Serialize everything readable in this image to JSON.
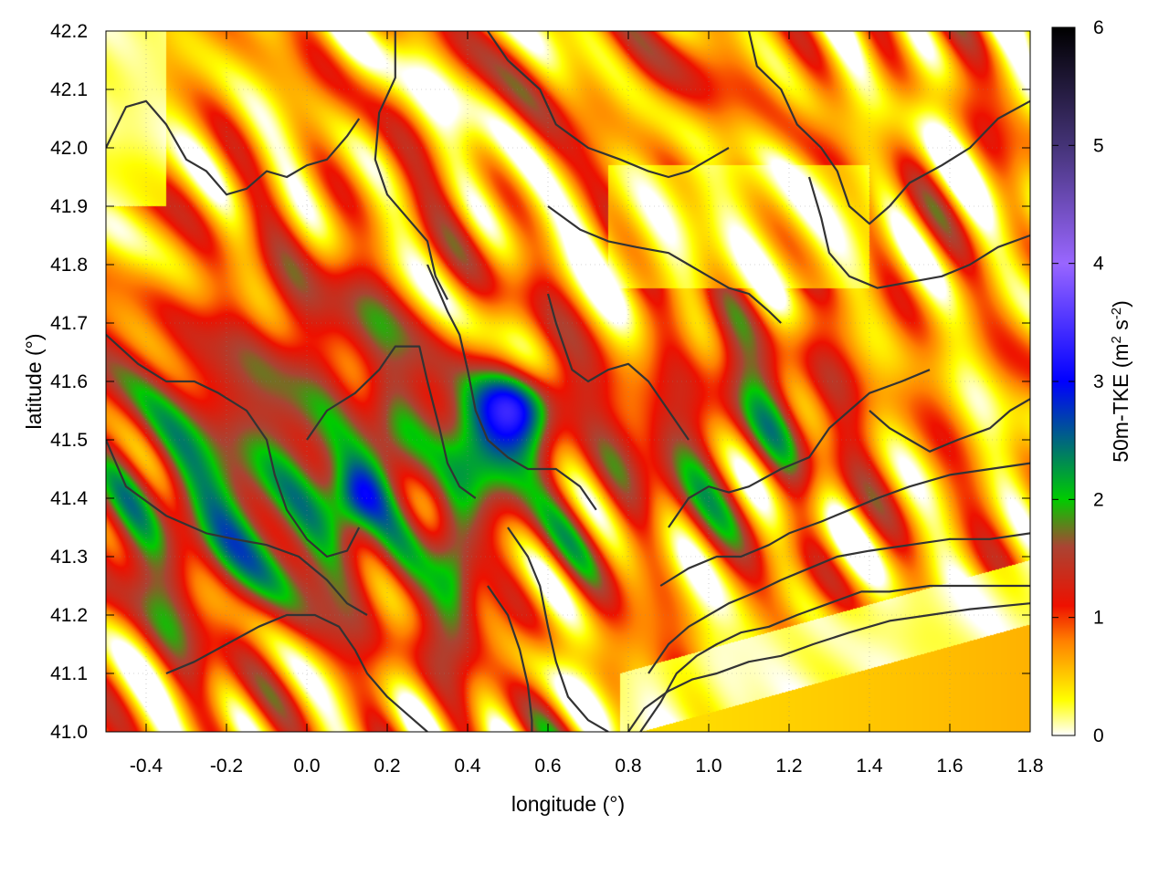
{
  "chart_data": {
    "type": "heatmap",
    "xlabel": "longitude (°)",
    "ylabel": "latitude (°)",
    "colorbar_label_main": "50m-TKE (m",
    "colorbar_label_sup1": "2",
    "colorbar_label_mid": " s",
    "colorbar_label_sup2": "-2",
    "colorbar_label_end": ")",
    "xlim": [
      -0.5,
      1.8
    ],
    "ylim": [
      41.0,
      42.2
    ],
    "clim": [
      0,
      6
    ],
    "x_ticks": [
      -0.4,
      -0.2,
      0.0,
      0.2,
      0.4,
      0.6,
      0.8,
      1.0,
      1.2,
      1.4,
      1.6,
      1.8
    ],
    "x_tick_labels": [
      "-0.4",
      "-0.2",
      "0.0",
      "0.2",
      "0.4",
      "0.6",
      "0.8",
      "1.0",
      "1.2",
      "1.4",
      "1.6",
      "1.8"
    ],
    "y_ticks": [
      41.0,
      41.1,
      41.2,
      41.3,
      41.4,
      41.5,
      41.6,
      41.7,
      41.8,
      41.9,
      42.0,
      42.1,
      42.2
    ],
    "y_tick_labels": [
      "41.0",
      "41.1",
      "41.2",
      "41.3",
      "41.4",
      "41.5",
      "41.6",
      "41.7",
      "41.8",
      "41.9",
      "42.0",
      "42.1",
      "42.2"
    ],
    "cbar_ticks": [
      0,
      1,
      2,
      3,
      4,
      5,
      6
    ],
    "cbar_tick_labels": [
      "0",
      "1",
      "2",
      "3",
      "4",
      "5",
      "6"
    ],
    "colormap": [
      {
        "v": 0.0,
        "color": "#ffffff"
      },
      {
        "v": 0.3,
        "color": "#ffff00"
      },
      {
        "v": 0.8,
        "color": "#ff8000"
      },
      {
        "v": 1.1,
        "color": "#ee1100"
      },
      {
        "v": 1.6,
        "color": "#aa4433"
      },
      {
        "v": 2.0,
        "color": "#00cc00"
      },
      {
        "v": 3.0,
        "color": "#0000ff"
      },
      {
        "v": 4.0,
        "color": "#9966ff"
      },
      {
        "v": 5.0,
        "color": "#443377"
      },
      {
        "v": 6.0,
        "color": "#000000"
      }
    ],
    "grid": true,
    "sea_tke": 0.5,
    "hotspots": [
      {
        "x": -0.25,
        "y": 41.45,
        "sx": 0.35,
        "sy": 0.18,
        "a": 1.0
      },
      {
        "x": 0.0,
        "y": 41.32,
        "sx": 0.3,
        "sy": 0.12,
        "a": 0.7
      },
      {
        "x": 0.47,
        "y": 41.51,
        "sx": 0.09,
        "sy": 0.07,
        "a": 1.9
      },
      {
        "x": 0.55,
        "y": 41.57,
        "sx": 0.08,
        "sy": 0.04,
        "a": 1.0
      },
      {
        "x": 0.21,
        "y": 41.5,
        "sx": 0.06,
        "sy": 0.07,
        "a": 0.7
      },
      {
        "x": 0.12,
        "y": 41.4,
        "sx": 0.05,
        "sy": 0.04,
        "a": 0.9
      },
      {
        "x": 0.37,
        "y": 41.3,
        "sx": 0.04,
        "sy": 0.08,
        "a": 1.1
      },
      {
        "x": 0.38,
        "y": 41.15,
        "sx": 0.08,
        "sy": 0.05,
        "a": 0.6
      },
      {
        "x": 1.1,
        "y": 41.55,
        "sx": 0.2,
        "sy": 0.12,
        "a": 0.9
      },
      {
        "x": 0.1,
        "y": 41.7,
        "sx": 0.2,
        "sy": 0.12,
        "a": 0.5
      },
      {
        "x": 0.85,
        "y": 42.12,
        "sx": 0.2,
        "sy": 0.06,
        "a": 0.4
      },
      {
        "x": 0.75,
        "y": 41.4,
        "sx": 0.15,
        "sy": 0.1,
        "a": 0.5
      }
    ],
    "contours": [
      [
        [
          -0.5,
          42.0
        ],
        [
          -0.45,
          42.07
        ],
        [
          -0.4,
          42.08
        ],
        [
          -0.35,
          42.04
        ],
        [
          -0.3,
          41.98
        ],
        [
          -0.25,
          41.96
        ],
        [
          -0.2,
          41.92
        ],
        [
          -0.15,
          41.93
        ],
        [
          -0.1,
          41.96
        ],
        [
          -0.05,
          41.95
        ],
        [
          0.0,
          41.97
        ],
        [
          0.05,
          41.98
        ],
        [
          0.1,
          42.02
        ],
        [
          0.13,
          42.05
        ]
      ],
      [
        [
          -0.5,
          41.68
        ],
        [
          -0.42,
          41.63
        ],
        [
          -0.35,
          41.6
        ],
        [
          -0.28,
          41.6
        ],
        [
          -0.22,
          41.58
        ],
        [
          -0.15,
          41.55
        ],
        [
          -0.1,
          41.5
        ],
        [
          -0.08,
          41.44
        ],
        [
          -0.05,
          41.38
        ],
        [
          0.0,
          41.33
        ],
        [
          0.05,
          41.3
        ],
        [
          0.1,
          41.31
        ],
        [
          0.13,
          41.35
        ]
      ],
      [
        [
          -0.5,
          41.5
        ],
        [
          -0.45,
          41.42
        ],
        [
          -0.35,
          41.37
        ],
        [
          -0.25,
          41.34
        ],
        [
          -0.18,
          41.33
        ],
        [
          -0.1,
          41.32
        ],
        [
          -0.02,
          41.3
        ],
        [
          0.05,
          41.26
        ],
        [
          0.1,
          41.22
        ],
        [
          0.15,
          41.2
        ]
      ],
      [
        [
          0.0,
          41.5
        ],
        [
          0.05,
          41.55
        ],
        [
          0.12,
          41.58
        ],
        [
          0.18,
          41.62
        ],
        [
          0.22,
          41.66
        ],
        [
          0.28,
          41.66
        ],
        [
          0.3,
          41.6
        ],
        [
          0.33,
          41.52
        ],
        [
          0.35,
          41.46
        ],
        [
          0.38,
          41.42
        ],
        [
          0.42,
          41.4
        ]
      ],
      [
        [
          0.3,
          41.8
        ],
        [
          0.35,
          41.72
        ],
        [
          0.38,
          41.68
        ],
        [
          0.4,
          41.62
        ],
        [
          0.42,
          41.55
        ],
        [
          0.45,
          41.5
        ],
        [
          0.5,
          41.47
        ],
        [
          0.55,
          41.45
        ],
        [
          0.62,
          41.45
        ],
        [
          0.68,
          41.42
        ],
        [
          0.72,
          41.38
        ]
      ],
      [
        [
          0.45,
          42.2
        ],
        [
          0.5,
          42.15
        ],
        [
          0.58,
          42.1
        ],
        [
          0.62,
          42.04
        ],
        [
          0.7,
          42.0
        ],
        [
          0.78,
          41.98
        ],
        [
          0.85,
          41.96
        ],
        [
          0.9,
          41.95
        ],
        [
          0.95,
          41.96
        ],
        [
          1.0,
          41.98
        ],
        [
          1.05,
          42.0
        ]
      ],
      [
        [
          0.6,
          41.9
        ],
        [
          0.68,
          41.86
        ],
        [
          0.75,
          41.84
        ],
        [
          0.82,
          41.83
        ],
        [
          0.9,
          41.82
        ],
        [
          0.95,
          41.8
        ],
        [
          1.0,
          41.78
        ],
        [
          1.05,
          41.76
        ],
        [
          1.1,
          41.75
        ],
        [
          1.15,
          41.72
        ],
        [
          1.18,
          41.7
        ]
      ],
      [
        [
          0.9,
          41.35
        ],
        [
          0.95,
          41.4
        ],
        [
          1.0,
          41.42
        ],
        [
          1.05,
          41.41
        ],
        [
          1.1,
          41.42
        ],
        [
          1.18,
          41.45
        ],
        [
          1.25,
          41.47
        ],
        [
          1.3,
          41.52
        ],
        [
          1.35,
          41.55
        ],
        [
          1.4,
          41.58
        ],
        [
          1.48,
          41.6
        ],
        [
          1.55,
          41.62
        ]
      ],
      [
        [
          0.88,
          41.25
        ],
        [
          0.95,
          41.28
        ],
        [
          1.02,
          41.3
        ],
        [
          1.08,
          41.3
        ],
        [
          1.15,
          41.32
        ],
        [
          1.2,
          41.34
        ],
        [
          1.28,
          41.36
        ],
        [
          1.35,
          41.38
        ],
        [
          1.42,
          41.4
        ],
        [
          1.5,
          41.42
        ],
        [
          1.6,
          41.44
        ],
        [
          1.7,
          41.45
        ],
        [
          1.8,
          41.46
        ]
      ],
      [
        [
          0.85,
          41.1
        ],
        [
          0.9,
          41.15
        ],
        [
          0.95,
          41.18
        ],
        [
          1.0,
          41.2
        ],
        [
          1.05,
          41.22
        ],
        [
          1.12,
          41.24
        ],
        [
          1.18,
          41.26
        ],
        [
          1.25,
          41.28
        ],
        [
          1.32,
          41.3
        ],
        [
          1.4,
          41.31
        ],
        [
          1.5,
          41.32
        ],
        [
          1.6,
          41.33
        ],
        [
          1.7,
          41.33
        ],
        [
          1.8,
          41.34
        ]
      ],
      [
        [
          0.83,
          41.0
        ],
        [
          0.88,
          41.05
        ],
        [
          0.92,
          41.1
        ],
        [
          0.97,
          41.13
        ],
        [
          1.02,
          41.15
        ],
        [
          1.08,
          41.17
        ],
        [
          1.15,
          41.18
        ],
        [
          1.22,
          41.2
        ],
        [
          1.3,
          41.22
        ],
        [
          1.38,
          41.24
        ],
        [
          1.45,
          41.24
        ],
        [
          1.55,
          41.25
        ],
        [
          1.65,
          41.25
        ],
        [
          1.75,
          41.25
        ],
        [
          1.8,
          41.25
        ]
      ],
      [
        [
          0.8,
          41.0
        ],
        [
          0.84,
          41.04
        ],
        [
          0.9,
          41.07
        ],
        [
          0.96,
          41.09
        ],
        [
          1.02,
          41.1
        ],
        [
          1.1,
          41.12
        ],
        [
          1.18,
          41.13
        ],
        [
          1.26,
          41.15
        ],
        [
          1.35,
          41.17
        ],
        [
          1.45,
          41.19
        ],
        [
          1.55,
          41.2
        ],
        [
          1.65,
          41.21
        ],
        [
          1.8,
          41.22
        ]
      ],
      [
        [
          1.1,
          42.2
        ],
        [
          1.12,
          42.14
        ],
        [
          1.18,
          42.1
        ],
        [
          1.22,
          42.04
        ],
        [
          1.28,
          42.0
        ],
        [
          1.32,
          41.96
        ],
        [
          1.35,
          41.9
        ],
        [
          1.4,
          41.87
        ],
        [
          1.45,
          41.9
        ],
        [
          1.5,
          41.94
        ],
        [
          1.58,
          41.97
        ],
        [
          1.65,
          42.0
        ],
        [
          1.72,
          42.05
        ],
        [
          1.8,
          42.08
        ]
      ],
      [
        [
          1.25,
          41.95
        ],
        [
          1.28,
          41.88
        ],
        [
          1.3,
          41.82
        ],
        [
          1.35,
          41.78
        ],
        [
          1.42,
          41.76
        ],
        [
          1.5,
          41.77
        ],
        [
          1.58,
          41.78
        ],
        [
          1.65,
          41.8
        ],
        [
          1.72,
          41.83
        ],
        [
          1.8,
          41.85
        ]
      ],
      [
        [
          0.22,
          42.2
        ],
        [
          0.22,
          42.12
        ],
        [
          0.18,
          42.06
        ],
        [
          0.17,
          41.98
        ],
        [
          0.2,
          41.92
        ],
        [
          0.25,
          41.88
        ],
        [
          0.3,
          41.84
        ],
        [
          0.32,
          41.78
        ],
        [
          0.35,
          41.74
        ]
      ],
      [
        [
          -0.35,
          41.1
        ],
        [
          -0.28,
          41.12
        ],
        [
          -0.2,
          41.15
        ],
        [
          -0.12,
          41.18
        ],
        [
          -0.05,
          41.2
        ],
        [
          0.02,
          41.2
        ],
        [
          0.08,
          41.18
        ],
        [
          0.12,
          41.14
        ],
        [
          0.15,
          41.1
        ],
        [
          0.2,
          41.06
        ],
        [
          0.25,
          41.03
        ],
        [
          0.3,
          41.0
        ]
      ],
      [
        [
          0.5,
          41.35
        ],
        [
          0.55,
          41.3
        ],
        [
          0.58,
          41.25
        ],
        [
          0.6,
          41.18
        ],
        [
          0.62,
          41.12
        ],
        [
          0.65,
          41.06
        ],
        [
          0.7,
          41.02
        ],
        [
          0.75,
          41.0
        ]
      ],
      [
        [
          0.45,
          41.25
        ],
        [
          0.5,
          41.2
        ],
        [
          0.53,
          41.14
        ],
        [
          0.55,
          41.08
        ],
        [
          0.56,
          41.02
        ],
        [
          0.56,
          41.0
        ]
      ],
      [
        [
          1.4,
          41.55
        ],
        [
          1.45,
          41.52
        ],
        [
          1.5,
          41.5
        ],
        [
          1.55,
          41.48
        ],
        [
          1.62,
          41.5
        ],
        [
          1.7,
          41.52
        ],
        [
          1.75,
          41.55
        ],
        [
          1.8,
          41.57
        ]
      ],
      [
        [
          0.6,
          41.75
        ],
        [
          0.62,
          41.7
        ],
        [
          0.64,
          41.66
        ],
        [
          0.66,
          41.62
        ],
        [
          0.7,
          41.6
        ],
        [
          0.75,
          41.62
        ],
        [
          0.8,
          41.63
        ],
        [
          0.85,
          41.6
        ],
        [
          0.9,
          41.55
        ],
        [
          0.95,
          41.5
        ]
      ]
    ]
  }
}
